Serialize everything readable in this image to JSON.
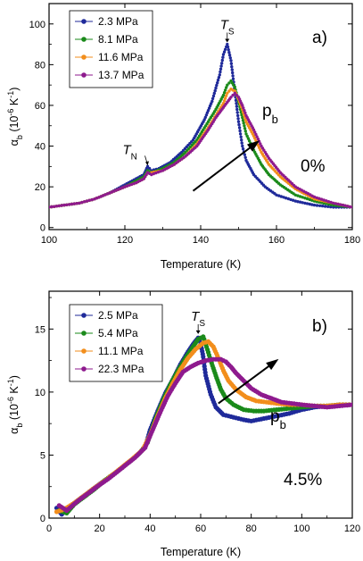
{
  "chart_data": [
    {
      "type": "scatter",
      "panel_label": "a)",
      "xlabel": "Temperature (K)",
      "ylabel": {
        "base": "α",
        "sub": "b",
        "rest": " (10",
        "sup1": "-6",
        "mid": " K",
        "sup2": "-1",
        "end": ")"
      },
      "xlim": [
        100,
        180
      ],
      "ylim": [
        -1,
        110
      ],
      "xticks": [
        "100",
        "120",
        "140",
        "160",
        "180"
      ],
      "yticks": [
        "0",
        "20",
        "40",
        "60",
        "80",
        "100"
      ],
      "grid": false,
      "legend_position": "top-left",
      "annotations": {
        "ts": {
          "base": "T",
          "sub": "S",
          "at": [
            147,
            94
          ]
        },
        "tn": {
          "base": "T",
          "sub": "N",
          "at": [
            126,
            30
          ]
        },
        "strain": "0%",
        "pb": {
          "base": "p",
          "sub": "b",
          "from": [
            138,
            18
          ],
          "to": [
            155,
            42
          ]
        }
      },
      "series": [
        {
          "name": "2.3 MPa",
          "color": "#1f2a9a",
          "points": [
            [
              100,
              10
            ],
            [
              104,
              11
            ],
            [
              108,
              12
            ],
            [
              112,
              14
            ],
            [
              116,
              17
            ],
            [
              120,
              21
            ],
            [
              123,
              24
            ],
            [
              125,
              26
            ],
            [
              126,
              30
            ],
            [
              127,
              28
            ],
            [
              129,
              29
            ],
            [
              132,
              32
            ],
            [
              135,
              37
            ],
            [
              138,
              43
            ],
            [
              141,
              53
            ],
            [
              143,
              62
            ],
            [
              145,
              75
            ],
            [
              146,
              85
            ],
            [
              147,
              90
            ],
            [
              148,
              82
            ],
            [
              149,
              67
            ],
            [
              150,
              52
            ],
            [
              151,
              40
            ],
            [
              152,
              33
            ],
            [
              154,
              26
            ],
            [
              157,
              20
            ],
            [
              160,
              16
            ],
            [
              165,
              13
            ],
            [
              170,
              11
            ],
            [
              175,
              10
            ],
            [
              180,
              10
            ]
          ]
        },
        {
          "name": "8.1 MPa",
          "color": "#1a8a1a",
          "points": [
            [
              100,
              10
            ],
            [
              104,
              11
            ],
            [
              108,
              12
            ],
            [
              112,
              14
            ],
            [
              116,
              17
            ],
            [
              120,
              20
            ],
            [
              123,
              23
            ],
            [
              125,
              25
            ],
            [
              126,
              28
            ],
            [
              127,
              27
            ],
            [
              130,
              29
            ],
            [
              133,
              32
            ],
            [
              136,
              37
            ],
            [
              139,
              43
            ],
            [
              142,
              52
            ],
            [
              144,
              58
            ],
            [
              146,
              65
            ],
            [
              147,
              70
            ],
            [
              148,
              72
            ],
            [
              149,
              69
            ],
            [
              150,
              62
            ],
            [
              151,
              54
            ],
            [
              152,
              46
            ],
            [
              154,
              38
            ],
            [
              156,
              31
            ],
            [
              158,
              26
            ],
            [
              161,
              21
            ],
            [
              165,
              16
            ],
            [
              170,
              13
            ],
            [
              175,
              11
            ],
            [
              180,
              10
            ]
          ]
        },
        {
          "name": "11.6 MPa",
          "color": "#f28e1c",
          "points": [
            [
              100,
              10
            ],
            [
              104,
              11
            ],
            [
              108,
              12
            ],
            [
              112,
              14
            ],
            [
              116,
              17
            ],
            [
              120,
              20
            ],
            [
              123,
              22
            ],
            [
              125,
              24
            ],
            [
              126,
              27
            ],
            [
              127,
              27
            ],
            [
              130,
              28
            ],
            [
              133,
              31
            ],
            [
              136,
              35
            ],
            [
              139,
              41
            ],
            [
              142,
              49
            ],
            [
              144,
              55
            ],
            [
              146,
              61
            ],
            [
              147,
              66
            ],
            [
              148,
              68
            ],
            [
              149,
              67
            ],
            [
              150,
              63
            ],
            [
              151,
              58
            ],
            [
              152,
              52
            ],
            [
              154,
              45
            ],
            [
              156,
              37
            ],
            [
              158,
              31
            ],
            [
              161,
              25
            ],
            [
              165,
              19
            ],
            [
              170,
              14
            ],
            [
              175,
              12
            ],
            [
              180,
              10
            ]
          ]
        },
        {
          "name": "13.7 MPa",
          "color": "#8e1a8e",
          "points": [
            [
              100,
              10
            ],
            [
              104,
              11
            ],
            [
              108,
              12
            ],
            [
              112,
              14
            ],
            [
              116,
              17
            ],
            [
              120,
              20
            ],
            [
              123,
              22
            ],
            [
              125,
              24
            ],
            [
              126,
              27
            ],
            [
              127,
              26
            ],
            [
              130,
              28
            ],
            [
              133,
              31
            ],
            [
              136,
              35
            ],
            [
              139,
              40
            ],
            [
              142,
              48
            ],
            [
              144,
              54
            ],
            [
              146,
              59
            ],
            [
              148,
              64
            ],
            [
              149,
              66
            ],
            [
              150,
              64
            ],
            [
              151,
              60
            ],
            [
              152,
              55
            ],
            [
              154,
              48
            ],
            [
              156,
              40
            ],
            [
              158,
              34
            ],
            [
              161,
              27
            ],
            [
              165,
              20
            ],
            [
              170,
              15
            ],
            [
              175,
              12
            ],
            [
              180,
              10
            ]
          ]
        }
      ]
    },
    {
      "type": "scatter",
      "panel_label": "b)",
      "xlabel": "Temperature (K)",
      "ylabel": {
        "base": "α",
        "sub": "b",
        "rest": " (10",
        "sup1": "-6",
        "mid": " K",
        "sup2": "-1",
        "end": ")"
      },
      "xlim": [
        0,
        120
      ],
      "ylim": [
        0,
        18
      ],
      "xticks": [
        "0",
        "20",
        "40",
        "60",
        "80",
        "100",
        "120"
      ],
      "yticks": [
        "0",
        "5",
        "10",
        "15"
      ],
      "grid": false,
      "legend_position": "top-left",
      "annotations": {
        "ts": {
          "base": "T",
          "sub": "S",
          "at": [
            59,
            15.1
          ]
        },
        "strain": "4.5%",
        "pb": {
          "base": "p",
          "sub": "b",
          "from": [
            67,
            9.1
          ],
          "to": [
            90,
            12.5
          ]
        }
      },
      "series": [
        {
          "name": "2.5 MPa",
          "color": "#1f2a9a",
          "points": [
            [
              3,
              0.8
            ],
            [
              5,
              0.3
            ],
            [
              8,
              0.9
            ],
            [
              12,
              1.5
            ],
            [
              16,
              2.1
            ],
            [
              20,
              2.7
            ],
            [
              25,
              3.4
            ],
            [
              30,
              4.2
            ],
            [
              35,
              5.0
            ],
            [
              38,
              5.6
            ],
            [
              40,
              7.0
            ],
            [
              43,
              8.5
            ],
            [
              46,
              9.9
            ],
            [
              49,
              11.0
            ],
            [
              52,
              12.2
            ],
            [
              55,
              13.2
            ],
            [
              57,
              13.8
            ],
            [
              59,
              14.3
            ],
            [
              60,
              13.9
            ],
            [
              61,
              12.8
            ],
            [
              62,
              11.3
            ],
            [
              64,
              9.8
            ],
            [
              66,
              8.8
            ],
            [
              69,
              8.2
            ],
            [
              73,
              8.0
            ],
            [
              77,
              7.8
            ],
            [
              80,
              7.7
            ],
            [
              85,
              7.9
            ],
            [
              90,
              8.1
            ],
            [
              95,
              8.3
            ],
            [
              100,
              8.6
            ],
            [
              105,
              8.8
            ],
            [
              110,
              8.9
            ],
            [
              115,
              9.0
            ],
            [
              120,
              9.0
            ]
          ]
        },
        {
          "name": "5.4 MPa",
          "color": "#1a8a1a",
          "points": [
            [
              4,
              0.6
            ],
            [
              7,
              0.4
            ],
            [
              10,
              1.1
            ],
            [
              14,
              1.7
            ],
            [
              18,
              2.3
            ],
            [
              22,
              3.0
            ],
            [
              27,
              3.7
            ],
            [
              32,
              4.5
            ],
            [
              36,
              5.2
            ],
            [
              39,
              6.0
            ],
            [
              42,
              7.8
            ],
            [
              45,
              9.3
            ],
            [
              48,
              10.6
            ],
            [
              51,
              11.7
            ],
            [
              54,
              12.7
            ],
            [
              57,
              13.6
            ],
            [
              59,
              14.2
            ],
            [
              61,
              14.4
            ],
            [
              62,
              13.8
            ],
            [
              64,
              12.5
            ],
            [
              66,
              11.3
            ],
            [
              68,
              10.2
            ],
            [
              70,
              9.5
            ],
            [
              73,
              9.0
            ],
            [
              77,
              8.6
            ],
            [
              81,
              8.5
            ],
            [
              85,
              8.5
            ],
            [
              90,
              8.6
            ],
            [
              95,
              8.7
            ],
            [
              100,
              8.8
            ],
            [
              105,
              8.9
            ],
            [
              110,
              8.9
            ],
            [
              115,
              9.0
            ],
            [
              120,
              9.0
            ]
          ]
        },
        {
          "name": "11.1 MPa",
          "color": "#f28e1c",
          "points": [
            [
              3,
              0.5
            ],
            [
              6,
              0.7
            ],
            [
              10,
              1.2
            ],
            [
              14,
              1.8
            ],
            [
              18,
              2.4
            ],
            [
              23,
              3.1
            ],
            [
              28,
              3.9
            ],
            [
              33,
              4.7
            ],
            [
              37,
              5.4
            ],
            [
              40,
              6.6
            ],
            [
              43,
              8.1
            ],
            [
              46,
              9.5
            ],
            [
              49,
              10.7
            ],
            [
              52,
              11.8
            ],
            [
              55,
              12.7
            ],
            [
              58,
              13.4
            ],
            [
              61,
              13.9
            ],
            [
              63,
              14.0
            ],
            [
              65,
              13.6
            ],
            [
              67,
              12.7
            ],
            [
              69,
              11.7
            ],
            [
              71,
              10.9
            ],
            [
              74,
              10.2
            ],
            [
              78,
              9.6
            ],
            [
              82,
              9.3
            ],
            [
              86,
              9.2
            ],
            [
              90,
              9.1
            ],
            [
              95,
              9.0
            ],
            [
              100,
              9.0
            ],
            [
              105,
              8.9
            ],
            [
              110,
              8.9
            ],
            [
              115,
              9.0
            ],
            [
              120,
              9.0
            ]
          ]
        },
        {
          "name": "22.3 MPa",
          "color": "#8e1a8e",
          "points": [
            [
              4,
              1.0
            ],
            [
              7,
              0.6
            ],
            [
              11,
              1.3
            ],
            [
              15,
              1.9
            ],
            [
              19,
              2.5
            ],
            [
              24,
              3.2
            ],
            [
              29,
              4.0
            ],
            [
              34,
              4.8
            ],
            [
              38,
              5.6
            ],
            [
              41,
              7.0
            ],
            [
              44,
              8.4
            ],
            [
              47,
              9.7
            ],
            [
              50,
              10.7
            ],
            [
              53,
              11.6
            ],
            [
              56,
              12.0
            ],
            [
              59,
              12.3
            ],
            [
              62,
              12.5
            ],
            [
              65,
              12.6
            ],
            [
              68,
              12.6
            ],
            [
              70,
              12.4
            ],
            [
              72,
              12.0
            ],
            [
              74,
              11.5
            ],
            [
              77,
              10.9
            ],
            [
              80,
              10.3
            ],
            [
              84,
              9.8
            ],
            [
              88,
              9.5
            ],
            [
              92,
              9.2
            ],
            [
              96,
              9.1
            ],
            [
              100,
              9.0
            ],
            [
              105,
              8.9
            ],
            [
              110,
              8.8
            ],
            [
              115,
              8.9
            ],
            [
              120,
              9.0
            ]
          ]
        }
      ]
    }
  ]
}
